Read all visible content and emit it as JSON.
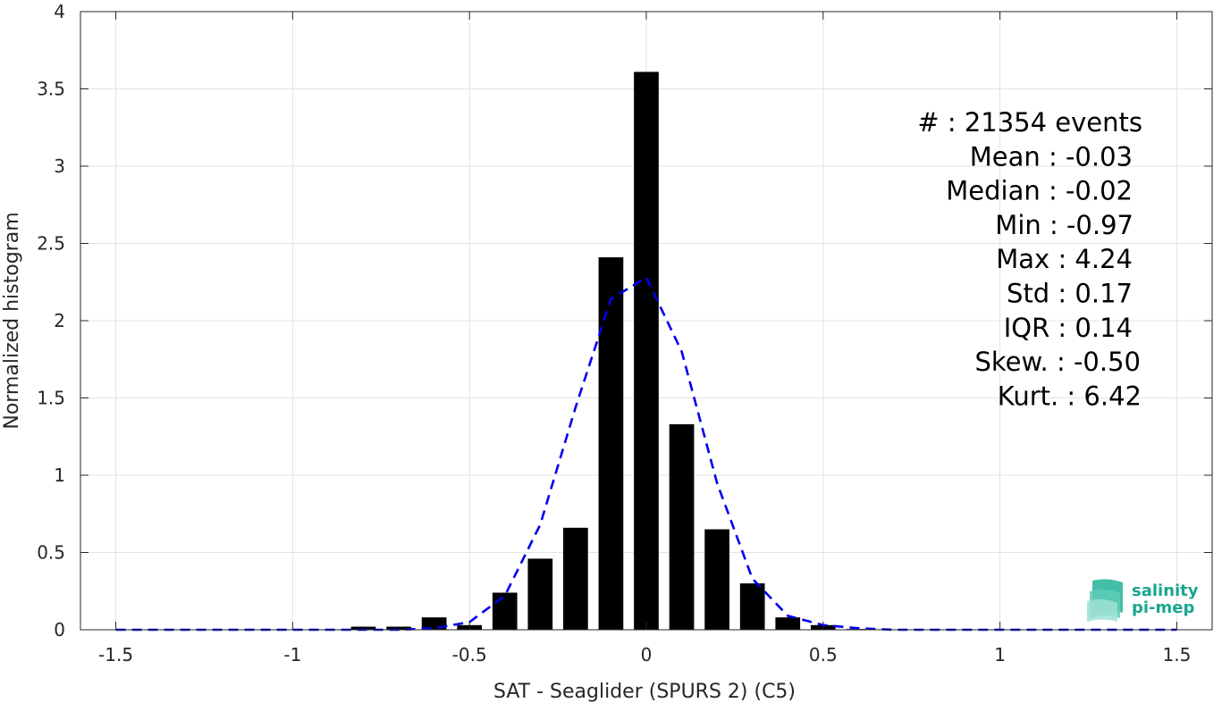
{
  "chart_data": {
    "type": "bar",
    "xlabel": "SAT - Seaglider (SPURS 2) (C5)",
    "ylabel": "Normalized histogram",
    "xlim": [
      -1.6,
      1.6
    ],
    "ylim": [
      0,
      4
    ],
    "xticks": [
      -1.5,
      -1,
      -0.5,
      0,
      0.5,
      1,
      1.5
    ],
    "xtick_labels": [
      "-1.5",
      "-1",
      "-0.5",
      "0",
      "0.5",
      "1",
      "1.5"
    ],
    "yticks": [
      0,
      0.5,
      1,
      1.5,
      2,
      2.5,
      3,
      3.5,
      4
    ],
    "ytick_labels": [
      "0",
      "0.5",
      "1",
      "1.5",
      "2",
      "2.5",
      "3",
      "3.5",
      "4"
    ],
    "grid": true,
    "bar_width": 0.07,
    "bar_color": "#000000",
    "bars": {
      "x": [
        -0.9,
        -0.8,
        -0.7,
        -0.6,
        -0.5,
        -0.4,
        -0.3,
        -0.2,
        -0.1,
        0.0,
        0.1,
        0.2,
        0.3,
        0.4,
        0.5,
        0.6
      ],
      "values": [
        0.0,
        0.02,
        0.02,
        0.08,
        0.03,
        0.24,
        0.46,
        0.66,
        2.41,
        3.61,
        1.33,
        0.65,
        0.3,
        0.08,
        0.03,
        0.005
      ]
    },
    "fit_line": {
      "style": "dashed",
      "color": "#0000ee",
      "x": [
        -1.5,
        -1.4,
        -1.3,
        -1.2,
        -1.1,
        -1.0,
        -0.9,
        -0.8,
        -0.7,
        -0.6,
        -0.5,
        -0.4,
        -0.3,
        -0.2,
        -0.1,
        0.0,
        0.1,
        0.2,
        0.3,
        0.4,
        0.5,
        0.6,
        0.7,
        0.8,
        0.9,
        1.0,
        1.1,
        1.2,
        1.3,
        1.4,
        1.5
      ],
      "y": [
        0,
        0,
        0,
        0,
        0,
        0,
        0,
        0,
        0,
        0.01,
        0.05,
        0.22,
        0.68,
        1.44,
        2.14,
        2.28,
        1.8,
        0.95,
        0.33,
        0.09,
        0.03,
        0.01,
        0,
        0,
        0,
        0,
        0,
        0,
        0,
        0,
        0
      ]
    }
  },
  "stats": [
    {
      "label": "#  : 21354 events"
    },
    {
      "label": "Mean : -0.03"
    },
    {
      "label": "Median : -0.02"
    },
    {
      "label": "Min : -0.97"
    },
    {
      "label": "Max : 4.24"
    },
    {
      "label": "Std : 0.17"
    },
    {
      "label": "IQR : 0.14"
    },
    {
      "label": "Skew. : -0.50"
    },
    {
      "label": "Kurt. : 6.42"
    }
  ],
  "logo": {
    "line1": "salinity",
    "line2": "pi-mep",
    "color": "#1aa68f"
  }
}
